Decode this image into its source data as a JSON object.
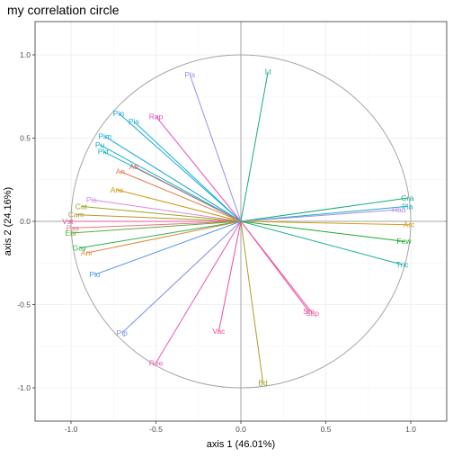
{
  "chart_data": {
    "type": "scatter",
    "title": "my correlation circle",
    "xlabel": "axis 1 (46.01%)",
    "ylabel": "axis 2 (24.16%)",
    "xlim": [
      -1.2,
      1.2
    ],
    "ylim": [
      -1.2,
      1.2
    ],
    "xticks": [
      "-1.0",
      "-0.5",
      "0.0",
      "0.5",
      "1.0"
    ],
    "yticks": [
      "-1.0",
      "-0.5",
      "0.0",
      "0.5",
      "1.0"
    ],
    "tick_values": [
      -1.0,
      -0.5,
      0.0,
      0.5,
      1.0
    ],
    "grid": true,
    "unit_circle": true,
    "legend": "none",
    "colors": {
      "panel_border": "#333333",
      "grid": "#ebebeb",
      "circle": "#a6a6a6",
      "zero_lines": "#a6a6a6"
    },
    "variables": [
      {
        "label": "Lt",
        "x": 0.16,
        "y": 0.9,
        "color": "#1aaa89"
      },
      {
        "label": "Pls",
        "x": -0.3,
        "y": 0.88,
        "color": "#9d8ee8"
      },
      {
        "label": "Rap",
        "x": -0.5,
        "y": 0.63,
        "color": "#e84cc0"
      },
      {
        "label": "Pin",
        "x": -0.72,
        "y": 0.65,
        "color": "#16a7d6"
      },
      {
        "label": "Pis",
        "x": -0.63,
        "y": 0.6,
        "color": "#16b4cf"
      },
      {
        "label": "Pim",
        "x": -0.8,
        "y": 0.51,
        "color": "#16abd6"
      },
      {
        "label": "Pu",
        "x": -0.83,
        "y": 0.46,
        "color": "#16b0cf"
      },
      {
        "label": "Pkt",
        "x": -0.81,
        "y": 0.42,
        "color": "#16b7bd"
      },
      {
        "label": "Att",
        "x": -0.63,
        "y": 0.33,
        "color": "#d16e6e"
      },
      {
        "label": "An",
        "x": -0.71,
        "y": 0.3,
        "color": "#e07b4c"
      },
      {
        "label": "Ans",
        "x": -0.73,
        "y": 0.19,
        "color": "#cc9a1a"
      },
      {
        "label": "Pis",
        "x": -0.88,
        "y": 0.13,
        "color": "#d98ae0"
      },
      {
        "label": "Cat",
        "x": -0.94,
        "y": 0.09,
        "color": "#9aa822"
      },
      {
        "label": "Cam",
        "x": -0.97,
        "y": 0.04,
        "color": "#b59a2e"
      },
      {
        "label": "Vst",
        "x": -1.02,
        "y": 0.0,
        "color": "#e85a9e"
      },
      {
        "label": "Pss",
        "x": -0.99,
        "y": -0.04,
        "color": "#e27a8a"
      },
      {
        "label": "Ebr",
        "x": -1.0,
        "y": -0.07,
        "color": "#66a838"
      },
      {
        "label": "Gav",
        "x": -0.95,
        "y": -0.16,
        "color": "#2fb05a"
      },
      {
        "label": "Ani",
        "x": -0.91,
        "y": -0.19,
        "color": "#e08a38"
      },
      {
        "label": "Plo",
        "x": -0.86,
        "y": -0.32,
        "color": "#4f93e8"
      },
      {
        "label": "Pip",
        "x": -0.7,
        "y": -0.67,
        "color": "#7b8ee8"
      },
      {
        "label": "Ree",
        "x": -0.5,
        "y": -0.85,
        "color": "#e85ab8"
      },
      {
        "label": "Vac",
        "x": -0.13,
        "y": -0.66,
        "color": "#ee4ca0"
      },
      {
        "label": "Bd",
        "x": 0.13,
        "y": -0.97,
        "color": "#a8a022"
      },
      {
        "label": "Sm",
        "x": 0.4,
        "y": -0.54,
        "color": "#ee4c98"
      },
      {
        "label": "Sap",
        "x": 0.42,
        "y": -0.55,
        "color": "#e85aa8"
      },
      {
        "label": "Gra",
        "x": 0.98,
        "y": 0.14,
        "color": "#1aaa7a"
      },
      {
        "label": "Pla",
        "x": 0.98,
        "y": 0.09,
        "color": "#16b0c4"
      },
      {
        "label": "Rad",
        "x": 0.93,
        "y": 0.07,
        "color": "#b08ae8"
      },
      {
        "label": "Arc",
        "x": 0.99,
        "y": -0.02,
        "color": "#d4a017"
      },
      {
        "label": "Few",
        "x": 0.96,
        "y": -0.12,
        "color": "#22a831"
      },
      {
        "label": "Tric",
        "x": 0.95,
        "y": -0.26,
        "color": "#16b09a"
      }
    ]
  }
}
